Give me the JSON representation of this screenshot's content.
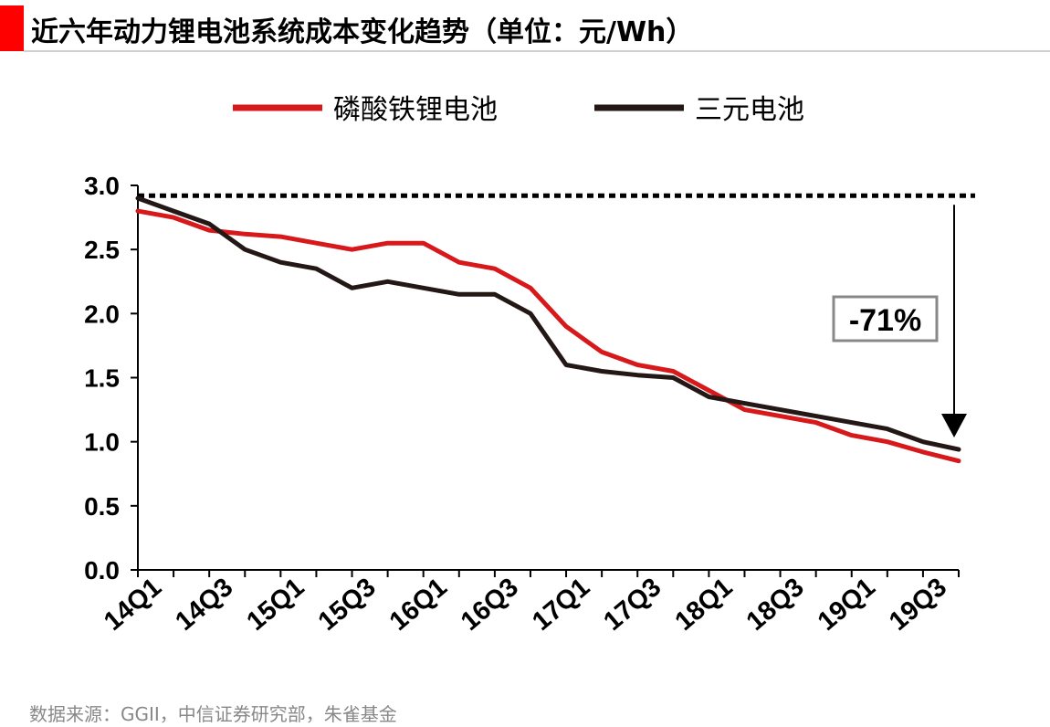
{
  "title": "近六年动力锂电池系统成本变化趋势（单位：元/Wh）",
  "source": "数据来源：GGII，中信证券研究部，朱雀基金",
  "colors": {
    "accent": "#ff0000",
    "lfp": "#d7191c",
    "ncm": "#231815"
  },
  "chart_data": {
    "type": "line",
    "title": "近六年动力锂电池系统成本变化趋势（单位：元/Wh）",
    "ylim": [
      0,
      3.0
    ],
    "yticks": [
      0.0,
      0.5,
      1.0,
      1.5,
      2.0,
      2.5,
      3.0
    ],
    "ytick_labels": [
      "0.0",
      "0.5",
      "1.0",
      "1.5",
      "2.0",
      "2.5",
      "3.0"
    ],
    "x_tick_labels": [
      "14Q1",
      "14Q3",
      "15Q1",
      "15Q3",
      "16Q1",
      "16Q3",
      "17Q1",
      "17Q3",
      "18Q1",
      "18Q3",
      "19Q1",
      "19Q3"
    ],
    "x": [
      "14Q1",
      "14Q2",
      "14Q3",
      "14Q4",
      "15Q1",
      "15Q2",
      "15Q3",
      "15Q4",
      "16Q1",
      "16Q2",
      "16Q3",
      "16Q4",
      "17Q1",
      "17Q2",
      "17Q3",
      "17Q4",
      "18Q1",
      "18Q2",
      "18Q3",
      "18Q4",
      "19Q1",
      "19Q2",
      "19Q3",
      "19Q4"
    ],
    "series": [
      {
        "name": "磷酸铁锂电池",
        "color": "#d7191c",
        "values": [
          2.8,
          2.75,
          2.65,
          2.62,
          2.6,
          2.55,
          2.5,
          2.55,
          2.55,
          2.4,
          2.35,
          2.2,
          1.9,
          1.7,
          1.6,
          1.55,
          1.4,
          1.25,
          1.2,
          1.15,
          1.05,
          1.0,
          0.92,
          0.85
        ]
      },
      {
        "name": "三元电池",
        "color": "#231815",
        "values": [
          2.9,
          2.8,
          2.7,
          2.5,
          2.4,
          2.35,
          2.2,
          2.25,
          2.2,
          2.15,
          2.15,
          2.0,
          1.6,
          1.55,
          1.52,
          1.5,
          1.35,
          1.3,
          1.25,
          1.2,
          1.15,
          1.1,
          1.0,
          0.94
        ]
      }
    ],
    "reference_line": {
      "value": 2.92,
      "style": "dotted"
    },
    "annotation": {
      "text": "-71%",
      "arrow": "down"
    },
    "legend_position": "top",
    "grid": false
  }
}
